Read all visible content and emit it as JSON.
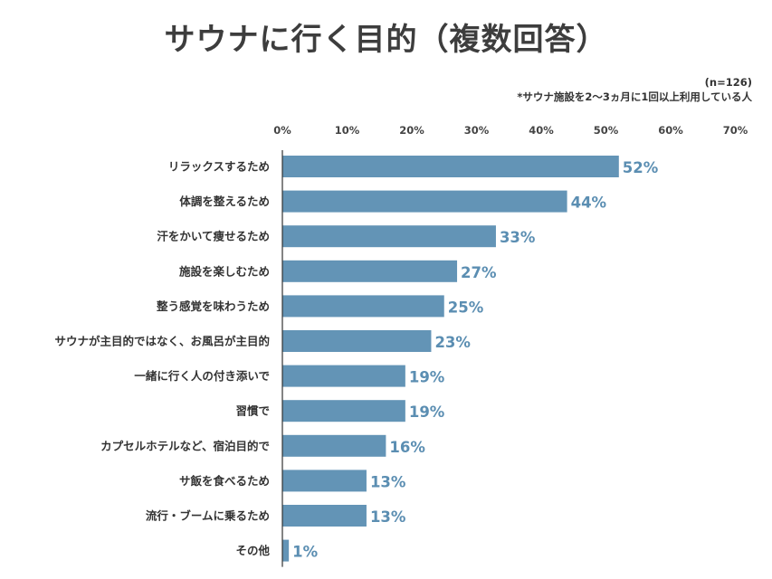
{
  "chart_data": {
    "type": "bar",
    "orientation": "horizontal",
    "title": "サウナに行く目的（複数回答）",
    "note_n": "(n=126)",
    "note_desc": "*サウナ施設を2〜3ヵ月に1回以上利用している人",
    "xlim": [
      0,
      70
    ],
    "ticks": [
      "0%",
      "10%",
      "20%",
      "30%",
      "40%",
      "50%",
      "60%",
      "70%"
    ],
    "tick_values": [
      0,
      10,
      20,
      30,
      40,
      50,
      60,
      70
    ],
    "categories": [
      "リラックスするため",
      "体調を整えるため",
      "汗をかいて痩せるため",
      "施設を楽しむため",
      "整う感覚を味わうため",
      "サウナが主目的ではなく、お風呂が主目的",
      "一緒に行く人の付き添いで",
      "習慣で",
      "カプセルホテルなど、宿泊目的で",
      "サ飯を食べるため",
      "流行・ブームに乗るため",
      "その他"
    ],
    "values": [
      52,
      44,
      33,
      27,
      25,
      23,
      19,
      19,
      16,
      13,
      13,
      1
    ],
    "value_labels": [
      "52%",
      "44%",
      "33%",
      "27%",
      "25%",
      "23%",
      "19%",
      "19%",
      "16%",
      "13%",
      "13%",
      "1%"
    ],
    "grid": false,
    "legend": "none",
    "colors": {
      "bar": "#6394b6",
      "label": "#5b8eb2",
      "axis": "#333333"
    }
  }
}
